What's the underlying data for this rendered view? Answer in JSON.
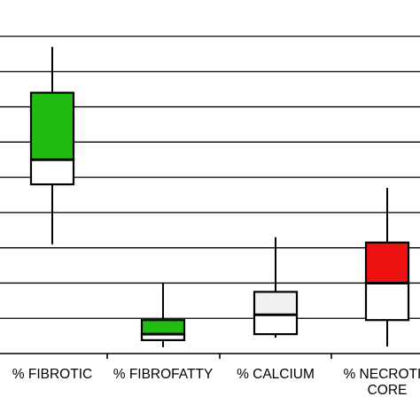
{
  "chart_data": {
    "type": "box",
    "title": "",
    "xlabel": "",
    "ylabel": "",
    "ylim": [
      0,
      9
    ],
    "gridlines": [
      1,
      2,
      3,
      4,
      5,
      6,
      7,
      8,
      9
    ],
    "grid": true,
    "legend": "none",
    "categories": [
      {
        "lines": [
          "% FIBROTIC"
        ]
      },
      {
        "lines": [
          "% FIBROFATTY"
        ]
      },
      {
        "lines": [
          "% CALCIUM"
        ]
      },
      {
        "lines": [
          "% NECROTIC",
          "CORE"
        ]
      }
    ],
    "boxes": [
      {
        "min": 3.1,
        "q1": 4.8,
        "median": 5.5,
        "q3": 7.4,
        "max": 8.7,
        "upper_color": "#22bb11",
        "lower_color": "#ffffff"
      },
      {
        "min": 0.18,
        "q1": 0.38,
        "median": 0.55,
        "q3": 0.95,
        "max": 2.0,
        "upper_color": "#22bb11",
        "lower_color": "#ffffff"
      },
      {
        "min": 0.45,
        "q1": 0.55,
        "median": 1.1,
        "q3": 1.75,
        "max": 3.3,
        "upper_color": "#f0f0f0",
        "lower_color": "#ffffff"
      },
      {
        "min": 0.2,
        "q1": 0.95,
        "median": 2.0,
        "q3": 3.15,
        "max": 4.7,
        "upper_color": "#ee1111",
        "lower_color": "#ffffff"
      }
    ]
  }
}
